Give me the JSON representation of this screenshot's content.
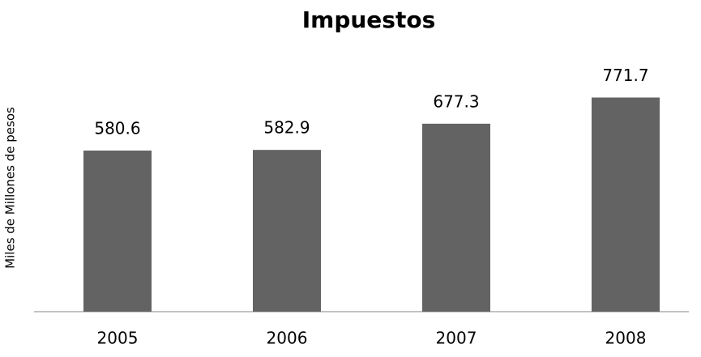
{
  "chart_data": {
    "type": "bar",
    "title": "Impuestos",
    "y_label": "Miles de Millones de pesos",
    "categories": [
      "2005",
      "2006",
      "2007",
      "2008"
    ],
    "values": [
      580.6,
      582.9,
      677.3,
      771.7
    ],
    "color": "#636363",
    "ylim": [
      0,
      900
    ]
  }
}
